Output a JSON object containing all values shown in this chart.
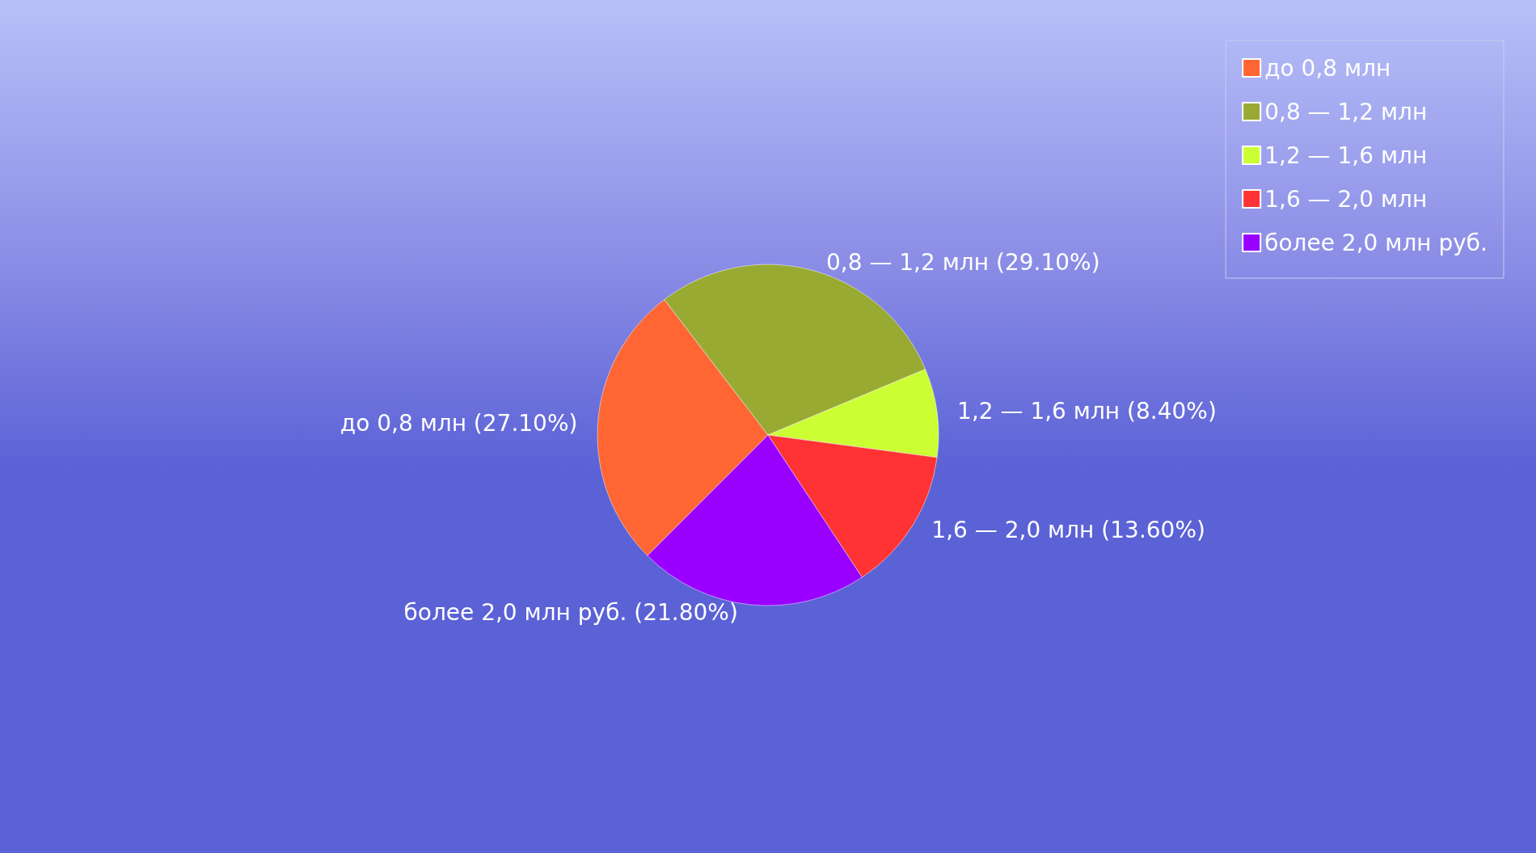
{
  "chart_data": {
    "type": "pie",
    "categories": [
      "до 0,8 млн",
      "0,8 — 1,2 млн",
      "1,2 — 1,6 млн",
      "1,6 — 2,0 млн",
      "более 2,0 млн руб."
    ],
    "values": [
      27.1,
      29.1,
      8.4,
      13.6,
      21.8
    ],
    "colors": [
      "#ff6633",
      "#99aa33",
      "#ccff33",
      "#ff3333",
      "#9900ff"
    ],
    "value_labels": [
      "до 0,8 млн (27.10%)",
      "0,8 — 1,2 млн (29.10%)",
      "1,2 — 1,6 млн (8.40%)",
      "1,6 — 2,0 млн (13.60%)",
      "более 2,0 млн руб. (21.80%)"
    ],
    "legend": "top right"
  }
}
